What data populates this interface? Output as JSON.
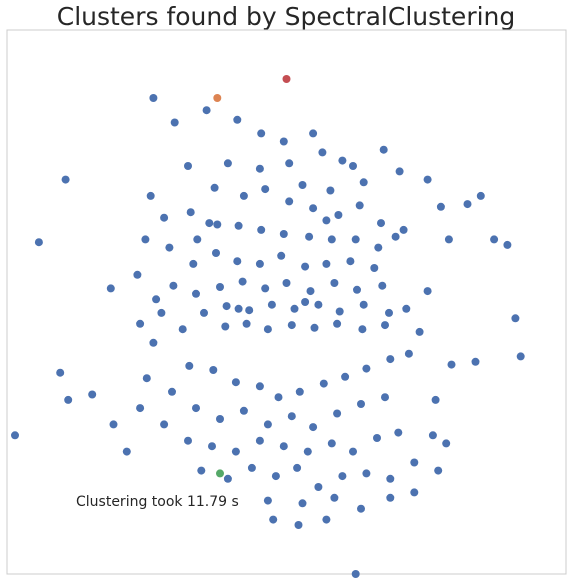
{
  "chart_data": {
    "type": "scatter",
    "title": "Clusters found by SpectralClustering",
    "xlabel": "",
    "ylabel": "",
    "grid": false,
    "axes_visible": false,
    "annotation": "Clustering took 11.79 s",
    "xlim": [
      -2.1,
      2.1
    ],
    "ylim": [
      -2.0,
      2.0
    ],
    "series": [
      {
        "color": "#4c72b0",
        "points": [
          [
            -1.0,
            1.5
          ],
          [
            -0.84,
            1.32
          ],
          [
            -0.6,
            1.41
          ],
          [
            -0.37,
            1.34
          ],
          [
            -0.19,
            1.24
          ],
          [
            -0.02,
            1.18
          ],
          [
            0.2,
            1.24
          ],
          [
            0.42,
            1.04
          ],
          [
            0.73,
            1.12
          ],
          [
            0.85,
            0.96
          ],
          [
            -0.32,
            0.78
          ],
          [
            -0.16,
            0.83
          ],
          [
            0.02,
            0.74
          ],
          [
            0.2,
            0.69
          ],
          [
            0.39,
            0.64
          ],
          [
            0.55,
            0.71
          ],
          [
            0.71,
            0.58
          ],
          [
            0.88,
            0.53
          ],
          [
            0.33,
            0.82
          ],
          [
            0.12,
            0.86
          ],
          [
            -0.52,
            0.57
          ],
          [
            -0.36,
            0.56
          ],
          [
            -0.19,
            0.53
          ],
          [
            -0.02,
            0.5
          ],
          [
            0.17,
            0.48
          ],
          [
            0.34,
            0.46
          ],
          [
            0.52,
            0.46
          ],
          [
            0.69,
            0.4
          ],
          [
            0.82,
            0.48
          ],
          [
            -0.67,
            0.46
          ],
          [
            -0.88,
            0.4
          ],
          [
            -0.7,
            0.28
          ],
          [
            -0.53,
            0.36
          ],
          [
            -0.37,
            0.3
          ],
          [
            -0.2,
            0.28
          ],
          [
            -0.04,
            0.34
          ],
          [
            0.14,
            0.26
          ],
          [
            0.3,
            0.28
          ],
          [
            0.48,
            0.3
          ],
          [
            0.66,
            0.25
          ],
          [
            -0.85,
            0.12
          ],
          [
            -0.68,
            0.06
          ],
          [
            -0.5,
            0.11
          ],
          [
            -0.33,
            0.15
          ],
          [
            -0.16,
            0.1
          ],
          [
            0.0,
            0.14
          ],
          [
            0.18,
            0.08
          ],
          [
            0.36,
            0.14
          ],
          [
            0.53,
            0.09
          ],
          [
            0.72,
            0.12
          ],
          [
            -0.62,
            -0.08
          ],
          [
            -0.45,
            -0.03
          ],
          [
            -0.28,
            -0.06
          ],
          [
            -0.11,
            -0.02
          ],
          [
            0.06,
            -0.05
          ],
          [
            0.24,
            -0.02
          ],
          [
            0.4,
            -0.07
          ],
          [
            0.58,
            -0.02
          ],
          [
            0.77,
            -0.08
          ],
          [
            -0.46,
            -0.18
          ],
          [
            -0.3,
            -0.16
          ],
          [
            -0.14,
            -0.2
          ],
          [
            0.04,
            -0.17
          ],
          [
            0.21,
            -0.19
          ],
          [
            0.38,
            -0.16
          ],
          [
            0.57,
            -0.2
          ],
          [
            0.74,
            -0.17
          ],
          [
            0.9,
            -0.05
          ],
          [
            -0.78,
            -0.2
          ],
          [
            -0.94,
            -0.08
          ],
          [
            -0.72,
            0.66
          ],
          [
            -0.92,
            0.62
          ],
          [
            -0.2,
            0.98
          ],
          [
            0.02,
            1.02
          ],
          [
            0.58,
            0.88
          ],
          [
            -0.44,
            1.02
          ],
          [
            0.27,
            1.1
          ],
          [
            0.5,
            1.0
          ],
          [
            -0.74,
            1.0
          ],
          [
            -0.54,
            0.84
          ],
          [
            -0.73,
            -0.47
          ],
          [
            -0.55,
            -0.5
          ],
          [
            -0.38,
            -0.59
          ],
          [
            -0.2,
            -0.62
          ],
          [
            -0.06,
            -0.7
          ],
          [
            0.1,
            -0.66
          ],
          [
            0.28,
            -0.6
          ],
          [
            0.44,
            -0.55
          ],
          [
            0.6,
            -0.49
          ],
          [
            0.78,
            -0.42
          ],
          [
            0.92,
            -0.38
          ],
          [
            -0.86,
            -0.66
          ],
          [
            -0.68,
            -0.78
          ],
          [
            -0.5,
            -0.86
          ],
          [
            -0.32,
            -0.8
          ],
          [
            -0.14,
            -0.9
          ],
          [
            0.04,
            -0.84
          ],
          [
            0.2,
            -0.92
          ],
          [
            0.38,
            -0.82
          ],
          [
            0.56,
            -0.75
          ],
          [
            0.74,
            -0.7
          ],
          [
            -0.92,
            -0.9
          ],
          [
            -0.74,
            -1.02
          ],
          [
            -0.56,
            -1.06
          ],
          [
            -0.38,
            -1.1
          ],
          [
            -0.2,
            -1.02
          ],
          [
            -0.02,
            -1.06
          ],
          [
            0.16,
            -1.1
          ],
          [
            0.34,
            -1.04
          ],
          [
            0.5,
            -1.1
          ],
          [
            0.68,
            -1.0
          ],
          [
            0.84,
            -0.96
          ],
          [
            -0.64,
            -1.24
          ],
          [
            -0.44,
            -1.3
          ],
          [
            -0.26,
            -1.22
          ],
          [
            -0.08,
            -1.28
          ],
          [
            0.08,
            -1.22
          ],
          [
            0.24,
            -1.36
          ],
          [
            0.42,
            -1.28
          ],
          [
            0.6,
            -1.26
          ],
          [
            0.78,
            -1.3
          ],
          [
            0.96,
            -1.18
          ],
          [
            -0.14,
            -1.46
          ],
          [
            0.12,
            -1.48
          ],
          [
            0.36,
            -1.44
          ],
          [
            0.56,
            -1.52
          ],
          [
            0.78,
            -1.44
          ],
          [
            -0.1,
            -1.6
          ],
          [
            0.09,
            -1.64
          ],
          [
            0.3,
            -1.6
          ],
          [
            -1.0,
            -0.3
          ],
          [
            -1.05,
            -0.56
          ],
          [
            -1.1,
            -0.78
          ],
          [
            -1.2,
            -1.1
          ],
          [
            -1.46,
            -0.68
          ],
          [
            -1.3,
            -0.9
          ],
          [
            -1.1,
            -0.16
          ],
          [
            -0.98,
            0.02
          ],
          [
            -1.12,
            0.2
          ],
          [
            -1.06,
            0.46
          ],
          [
            -1.02,
            0.78
          ],
          [
            -1.32,
            0.1
          ],
          [
            1.0,
            -0.22
          ],
          [
            1.06,
            0.08
          ],
          [
            1.22,
            0.46
          ],
          [
            1.16,
            0.7
          ],
          [
            1.06,
            0.9
          ],
          [
            1.36,
            0.72
          ],
          [
            1.42,
            -0.44
          ],
          [
            1.24,
            -0.46
          ],
          [
            1.12,
            -0.72
          ],
          [
            1.1,
            -0.98
          ],
          [
            1.14,
            -1.24
          ],
          [
            0.96,
            -1.4
          ],
          [
            1.46,
            0.78
          ],
          [
            1.56,
            0.46
          ],
          [
            1.2,
            -1.04
          ],
          [
            -1.66,
            0.9
          ],
          [
            -1.7,
            -0.52
          ],
          [
            -1.64,
            -0.72
          ],
          [
            -2.04,
            -0.98
          ],
          [
            -1.86,
            0.44
          ],
          [
            1.66,
            0.42
          ],
          [
            1.72,
            -0.12
          ],
          [
            1.76,
            -0.4
          ],
          [
            0.52,
            -2.0
          ],
          [
            -0.36,
            -0.05
          ],
          [
            0.14,
            0.0
          ],
          [
            -0.58,
            0.58
          ],
          [
            0.3,
            0.6
          ]
        ]
      },
      {
        "color": "#dd8452",
        "points": [
          [
            -0.52,
            1.5
          ]
        ]
      },
      {
        "color": "#c44e52",
        "points": [
          [
            0.0,
            1.64
          ]
        ]
      },
      {
        "color": "#55a868",
        "points": [
          [
            -0.5,
            -1.26
          ]
        ]
      }
    ]
  }
}
